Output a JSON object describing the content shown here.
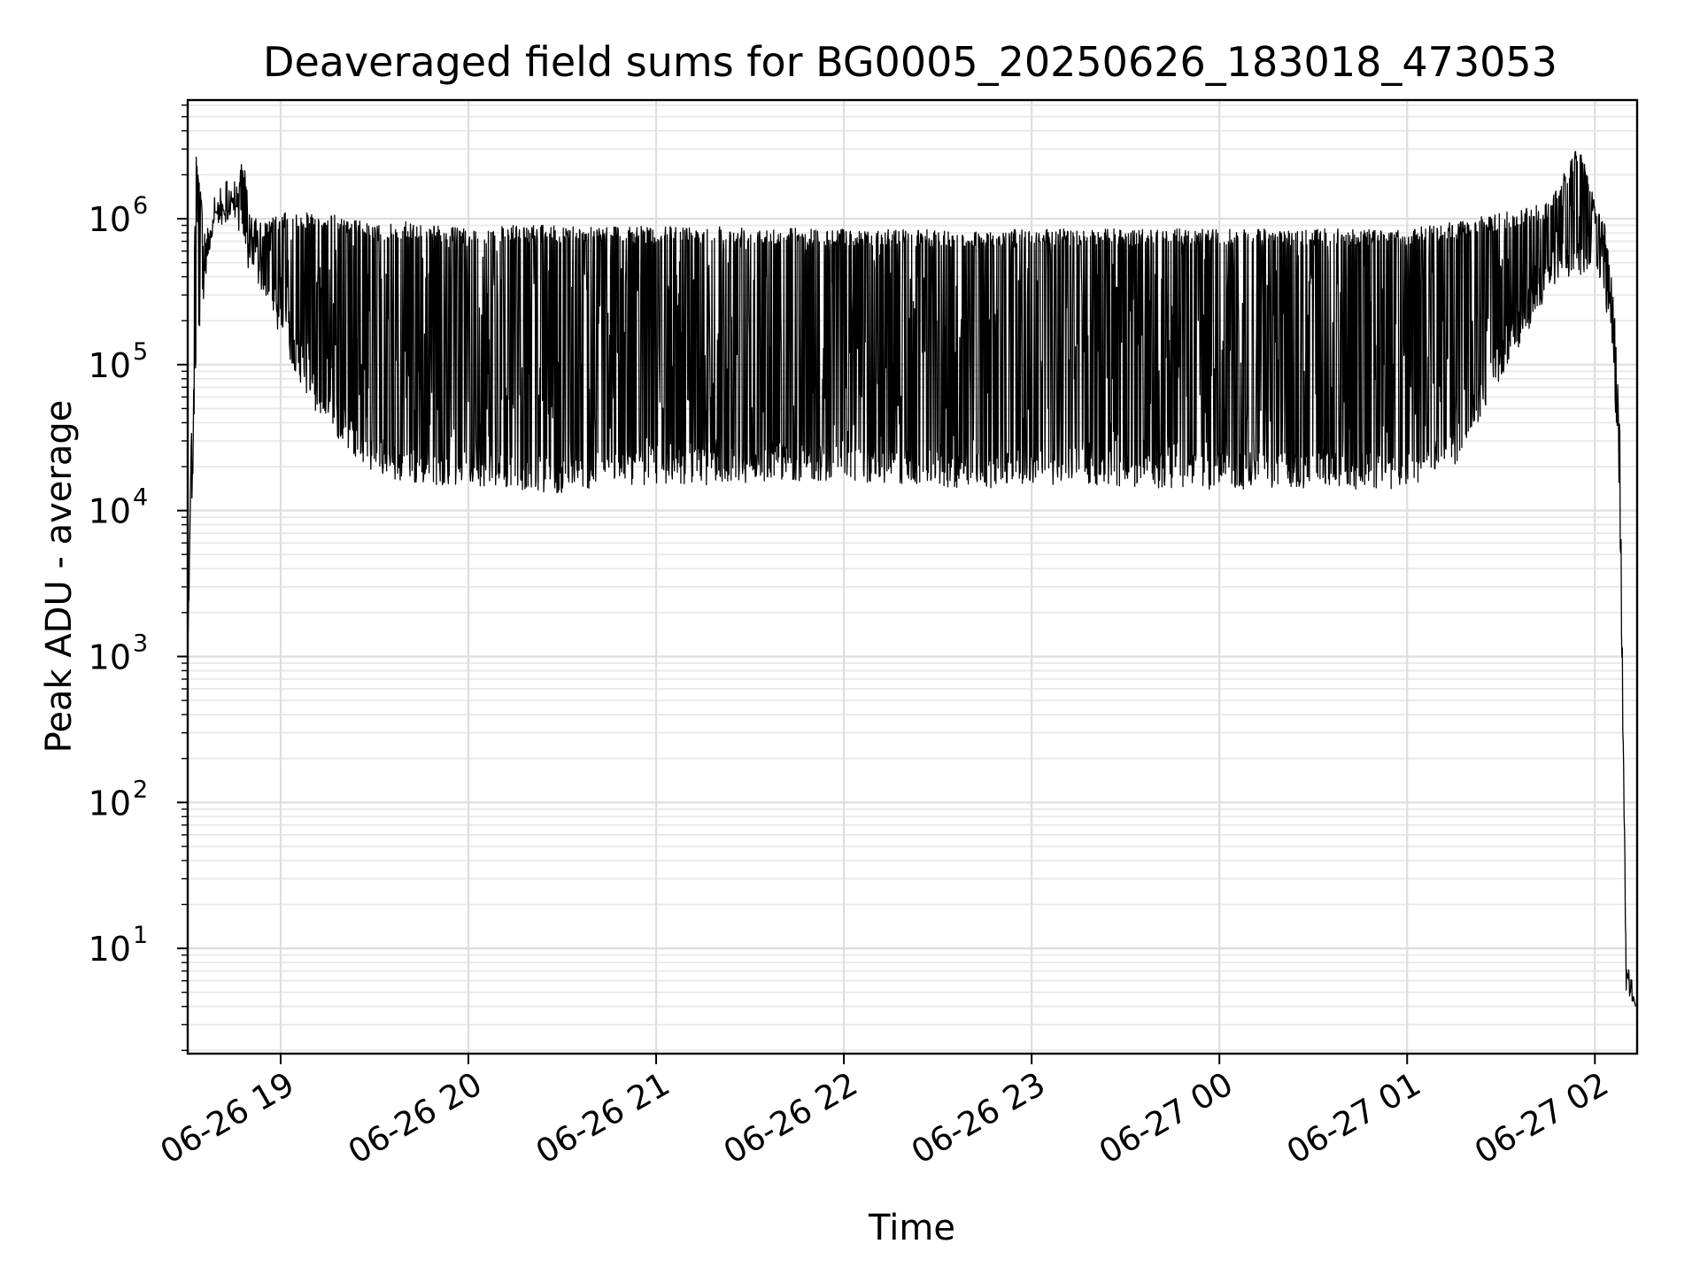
{
  "chart_data": {
    "type": "line",
    "title": "Deaveraged field sums for BG0005_20250626_183018_473053",
    "xlabel": "Time",
    "ylabel": "Peak ADU - average",
    "y_scale": "log",
    "ylim": [
      1.9,
      6500000
    ],
    "xlim": [
      "2025-06-26 18:30:18",
      "2025-06-27 02:13:30"
    ],
    "grid": "both-major-and-minor",
    "legend": "none",
    "line_color": "#000000",
    "x_ticks": [
      {
        "at": "2025-06-26 19:00",
        "label": "06-26 19"
      },
      {
        "at": "2025-06-26 20:00",
        "label": "06-26 20"
      },
      {
        "at": "2025-06-26 21:00",
        "label": "06-26 21"
      },
      {
        "at": "2025-06-26 22:00",
        "label": "06-26 22"
      },
      {
        "at": "2025-06-26 23:00",
        "label": "06-26 23"
      },
      {
        "at": "2025-06-27 00:00",
        "label": "06-27 00"
      },
      {
        "at": "2025-06-27 01:00",
        "label": "06-27 01"
      },
      {
        "at": "2025-06-27 02:00",
        "label": "06-27 02"
      }
    ],
    "y_ticks": [
      {
        "value": 10,
        "base": "10",
        "exp": "1"
      },
      {
        "value": 100,
        "base": "10",
        "exp": "2"
      },
      {
        "value": 1000,
        "base": "10",
        "exp": "3"
      },
      {
        "value": 10000,
        "base": "10",
        "exp": "4"
      },
      {
        "value": 100000,
        "base": "10",
        "exp": "5"
      },
      {
        "value": 1000000,
        "base": "10",
        "exp": "6"
      }
    ],
    "series": [
      {
        "x": [
          "2025-06-26 18:30:18",
          "2025-06-26 18:33",
          "2025-06-26 18:36",
          "2025-06-26 18:39",
          "2025-06-26 18:42",
          "2025-06-26 18:45",
          "2025-06-26 18:48",
          "2025-06-26 18:50",
          "2025-06-26 18:52",
          "2025-06-26 18:55",
          "2025-06-26 19:00",
          "2025-06-26 19:10",
          "2025-06-26 19:20",
          "2025-06-26 19:30",
          "2025-06-26 19:40",
          "2025-06-26 19:50",
          "2025-06-26 20:00",
          "2025-06-26 20:15",
          "2025-06-26 20:30",
          "2025-06-26 20:45",
          "2025-06-26 21:00",
          "2025-06-26 21:20",
          "2025-06-26 21:40",
          "2025-06-26 22:00",
          "2025-06-26 22:20",
          "2025-06-26 22:40",
          "2025-06-26 23:00",
          "2025-06-26 23:20",
          "2025-06-26 23:40",
          "2025-06-27 00:00",
          "2025-06-27 00:20",
          "2025-06-27 00:40",
          "2025-06-27 01:00",
          "2025-06-27 01:15",
          "2025-06-27 01:30",
          "2025-06-27 01:45",
          "2025-06-27 01:55",
          "2025-06-27 02:00",
          "2025-06-27 02:03",
          "2025-06-27 02:06",
          "2025-06-27 02:08",
          "2025-06-27 02:10",
          "2025-06-27 02:13"
        ],
        "upper": [
          1200,
          3000000,
          800000,
          1100000,
          1200000,
          1300000,
          2800000,
          1100000,
          1000000,
          950000,
          1100000,
          1100000,
          1050000,
          900000,
          950000,
          900000,
          850000,
          900000,
          900000,
          900000,
          880000,
          900000,
          880000,
          850000,
          850000,
          820000,
          850000,
          850000,
          850000,
          850000,
          850000,
          850000,
          850000,
          950000,
          1100000,
          1300000,
          3300000,
          1300000,
          1000000,
          300000,
          40000,
          8,
          4
        ],
        "lower": [
          1200,
          80000,
          400000,
          1000000,
          1000000,
          1100000,
          600000,
          400000,
          350000,
          300000,
          150000,
          50000,
          28000,
          18000,
          15000,
          15000,
          15000,
          14000,
          13000,
          15000,
          15000,
          15000,
          16000,
          16000,
          15000,
          14000,
          15000,
          15000,
          14000,
          14000,
          14000,
          14000,
          14000,
          20000,
          80000,
          300000,
          400000,
          500000,
          300000,
          100000,
          8000,
          5,
          4
        ]
      }
    ]
  }
}
